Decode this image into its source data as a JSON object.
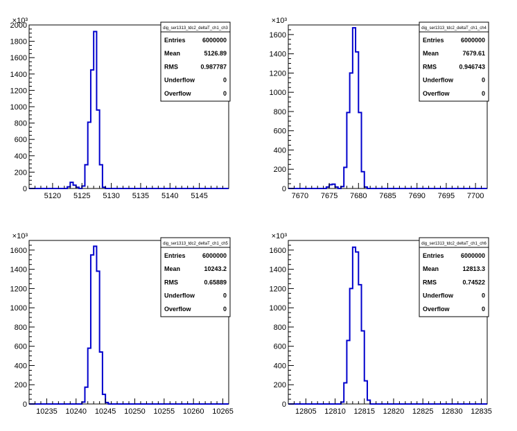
{
  "chart_data": [
    {
      "type": "histogram",
      "title": "dig_ser1313_tdc2_deltaT_ch1_ch3",
      "multiplier": "×10³",
      "xlim": [
        5116,
        5150
      ],
      "ylim": [
        0,
        2000
      ],
      "xticks": [
        5120,
        5125,
        5130,
        5135,
        5140,
        5145
      ],
      "yticks": [
        0,
        200,
        400,
        600,
        800,
        1000,
        1200,
        1400,
        1600,
        1800,
        2000
      ],
      "bin_width": 0.5,
      "bins": [
        [
          5122.5,
          20
        ],
        [
          5123.0,
          75
        ],
        [
          5123.5,
          40
        ],
        [
          5124.0,
          15
        ],
        [
          5125.0,
          30
        ],
        [
          5125.5,
          290
        ],
        [
          5126.0,
          810
        ],
        [
          5126.5,
          1450
        ],
        [
          5127.0,
          1920
        ],
        [
          5127.5,
          960
        ],
        [
          5128.0,
          290
        ],
        [
          5128.5,
          15
        ]
      ],
      "stats": [
        {
          "label": "Entries",
          "value": "6000000"
        },
        {
          "label": "Mean",
          "value": "5126.89"
        },
        {
          "label": "RMS",
          "value": "0.987787"
        },
        {
          "label": "Underflow",
          "value": "0"
        },
        {
          "label": "Overflow",
          "value": "0"
        }
      ]
    },
    {
      "type": "histogram",
      "title": "dig_ser1313_tdc2_deltaT_ch1_ch4",
      "multiplier": "×10³",
      "xlim": [
        7668,
        7702
      ],
      "ylim": [
        0,
        1700
      ],
      "xticks": [
        7670,
        7675,
        7680,
        7685,
        7690,
        7695,
        7700
      ],
      "yticks": [
        0,
        200,
        400,
        600,
        800,
        1000,
        1200,
        1400,
        1600
      ],
      "bin_width": 0.5,
      "bins": [
        [
          7674.5,
          15
        ],
        [
          7675.0,
          40
        ],
        [
          7675.5,
          45
        ],
        [
          7676.0,
          15
        ],
        [
          7677.0,
          20
        ],
        [
          7677.5,
          220
        ],
        [
          7678.0,
          790
        ],
        [
          7678.5,
          1200
        ],
        [
          7679.0,
          1670
        ],
        [
          7679.5,
          1420
        ],
        [
          7680.0,
          790
        ],
        [
          7680.5,
          175
        ],
        [
          7681.0,
          15
        ]
      ],
      "stats": [
        {
          "label": "Entries",
          "value": "6000000"
        },
        {
          "label": "Mean",
          "value": "7679.61"
        },
        {
          "label": "RMS",
          "value": "0.946743"
        },
        {
          "label": "Underflow",
          "value": "0"
        },
        {
          "label": "Overflow",
          "value": "0"
        }
      ]
    },
    {
      "type": "histogram",
      "title": "dig_ser1313_tdc2_deltaT_ch1_ch5",
      "multiplier": "×10³",
      "xlim": [
        10232,
        10266
      ],
      "ylim": [
        0,
        1700
      ],
      "xticks": [
        10235,
        10240,
        10245,
        10250,
        10255,
        10260,
        10265
      ],
      "yticks": [
        0,
        200,
        400,
        600,
        800,
        1000,
        1200,
        1400,
        1600
      ],
      "bin_width": 0.5,
      "bins": [
        [
          10241.0,
          20
        ],
        [
          10241.5,
          175
        ],
        [
          10242.0,
          580
        ],
        [
          10242.5,
          1550
        ],
        [
          10243.0,
          1640
        ],
        [
          10243.5,
          1380
        ],
        [
          10244.0,
          540
        ],
        [
          10244.5,
          100
        ],
        [
          10245.0,
          15
        ]
      ],
      "stats": [
        {
          "label": "Entries",
          "value": "6000000"
        },
        {
          "label": "Mean",
          "value": "10243.2"
        },
        {
          "label": "RMS",
          "value": "0.65889"
        },
        {
          "label": "Underflow",
          "value": "0"
        },
        {
          "label": "Overflow",
          "value": "0"
        }
      ]
    },
    {
      "type": "histogram",
      "title": "dig_ser1313_tdc2_deltaT_ch1_ch6",
      "multiplier": "×10³",
      "xlim": [
        12802,
        12836
      ],
      "ylim": [
        0,
        1700
      ],
      "xticks": [
        12805,
        12810,
        12815,
        12820,
        12825,
        12830,
        12835
      ],
      "yticks": [
        0,
        200,
        400,
        600,
        800,
        1000,
        1200,
        1400,
        1600
      ],
      "bin_width": 0.5,
      "bins": [
        [
          12811.0,
          20
        ],
        [
          12811.5,
          220
        ],
        [
          12812.0,
          660
        ],
        [
          12812.5,
          1200
        ],
        [
          12813.0,
          1630
        ],
        [
          12813.5,
          1580
        ],
        [
          12814.0,
          1240
        ],
        [
          12814.5,
          760
        ],
        [
          12815.0,
          240
        ],
        [
          12815.5,
          40
        ]
      ],
      "stats": [
        {
          "label": "Entries",
          "value": "6000000"
        },
        {
          "label": "Mean",
          "value": "12813.3"
        },
        {
          "label": "RMS",
          "value": "0.74522"
        },
        {
          "label": "Underflow",
          "value": "0"
        },
        {
          "label": "Overflow",
          "value": "0"
        }
      ]
    }
  ]
}
